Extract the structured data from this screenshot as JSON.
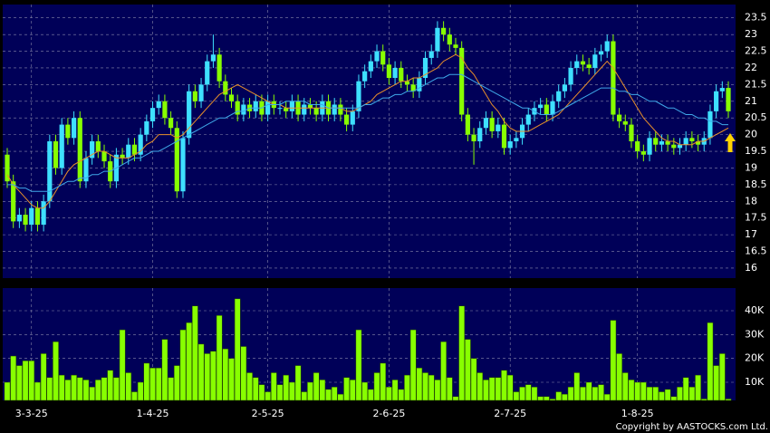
{
  "chart_data": {
    "type": "candlestick",
    "categories": [
      null,
      null,
      null,
      null,
      "3-3-25",
      null,
      null,
      null,
      null,
      null,
      null,
      null,
      null,
      null,
      null,
      null,
      null,
      null,
      null,
      null,
      null,
      null,
      null,
      null,
      "1-4-25",
      null,
      null,
      null,
      null,
      null,
      null,
      null,
      null,
      null,
      null,
      null,
      null,
      null,
      null,
      null,
      null,
      null,
      null,
      "2-5-25",
      null,
      null,
      null,
      null,
      null,
      null,
      null,
      null,
      null,
      null,
      null,
      null,
      null,
      null,
      null,
      null,
      null,
      null,
      null,
      "2-6-25",
      null,
      null,
      null,
      null,
      null,
      null,
      null,
      null,
      null,
      null,
      null,
      null,
      null,
      null,
      null,
      null,
      null,
      null,
      null,
      "2-7-25",
      null,
      null,
      null,
      null,
      null,
      null,
      null,
      null,
      null,
      null,
      null,
      null,
      null,
      null,
      null,
      null,
      null,
      null,
      null,
      null,
      "1-8-25",
      null,
      null,
      null,
      null,
      null,
      null,
      null,
      null,
      null,
      null,
      null,
      null,
      null,
      null,
      null
    ],
    "open": [
      19.4,
      18.6,
      17.4,
      17.6,
      17.3,
      17.8,
      17.3,
      18.0,
      19.8,
      19.0,
      20.3,
      19.9,
      20.5,
      18.6,
      19.3,
      19.8,
      19.5,
      19.2,
      18.6,
      19.4,
      19.3,
      19.7,
      19.4,
      20.0,
      20.4,
      20.8,
      21.0,
      20.5,
      20.2,
      18.3,
      19.9,
      21.3,
      21.0,
      21.5,
      22.2,
      22.4,
      21.6,
      21.2,
      21.0,
      20.6,
      20.9,
      20.7,
      21.0,
      20.6,
      21.0,
      20.8,
      20.8,
      20.7,
      21.0,
      20.6,
      20.9,
      20.8,
      20.6,
      21.0,
      20.6,
      20.9,
      20.6,
      20.3,
      20.7,
      21.6,
      21.9,
      22.2,
      22.5,
      22.1,
      21.7,
      22.0,
      21.6,
      21.5,
      21.3,
      21.7,
      22.3,
      22.5,
      23.2,
      23.0,
      22.7,
      22.6,
      20.6,
      20.0,
      19.8,
      20.2,
      20.5,
      20.1,
      20.3,
      19.6,
      19.8,
      19.9,
      20.3,
      20.6,
      20.8,
      20.9,
      20.6,
      21.0,
      21.3,
      21.5,
      22.0,
      22.2,
      22.1,
      22.0,
      22.4,
      22.5,
      22.8,
      20.6,
      20.4,
      20.3,
      19.8,
      19.5,
      19.4,
      19.9,
      19.7,
      19.8,
      19.7,
      19.6,
      19.7,
      19.9,
      19.8,
      19.7,
      19.9,
      20.7,
      21.3,
      21.4
    ],
    "high": [
      19.6,
      18.8,
      17.8,
      17.8,
      18.0,
      18.0,
      18.2,
      20.0,
      20.0,
      20.5,
      20.5,
      20.7,
      20.7,
      19.5,
      20.0,
      20.0,
      19.7,
      19.4,
      19.6,
      19.6,
      19.9,
      19.9,
      20.2,
      20.6,
      21.0,
      21.2,
      21.2,
      20.7,
      20.4,
      20.1,
      21.5,
      21.5,
      21.7,
      22.4,
      23.0,
      22.6,
      21.8,
      21.4,
      21.2,
      21.1,
      21.1,
      21.2,
      21.2,
      21.2,
      21.2,
      21.0,
      21.0,
      21.2,
      21.2,
      21.1,
      21.1,
      21.0,
      21.2,
      21.2,
      21.1,
      21.1,
      20.8,
      20.9,
      21.8,
      22.1,
      22.4,
      22.7,
      22.7,
      22.3,
      22.2,
      22.2,
      21.8,
      21.7,
      21.9,
      22.5,
      22.7,
      23.4,
      23.4,
      23.2,
      22.9,
      22.8,
      20.8,
      20.2,
      20.4,
      20.7,
      20.7,
      20.5,
      20.5,
      20.0,
      20.1,
      20.5,
      20.8,
      21.0,
      21.1,
      21.1,
      21.2,
      21.5,
      21.7,
      22.2,
      22.4,
      22.4,
      22.3,
      22.6,
      22.7,
      23.0,
      23.0,
      20.8,
      20.6,
      20.5,
      20.0,
      19.7,
      20.1,
      20.1,
      20.0,
      20.0,
      19.9,
      19.9,
      20.1,
      20.1,
      20.0,
      20.1,
      20.9,
      21.5,
      21.6,
      21.6
    ],
    "low": [
      18.4,
      17.2,
      17.2,
      17.1,
      17.1,
      17.1,
      17.1,
      17.8,
      18.8,
      18.8,
      19.7,
      19.7,
      18.4,
      18.4,
      19.1,
      19.3,
      19.0,
      18.4,
      18.4,
      19.1,
      19.1,
      19.2,
      19.2,
      19.8,
      20.2,
      20.6,
      20.3,
      20.0,
      18.1,
      18.1,
      19.7,
      20.8,
      20.8,
      21.3,
      22.0,
      21.4,
      21.0,
      20.8,
      20.4,
      20.4,
      20.5,
      20.5,
      20.4,
      20.4,
      20.6,
      20.6,
      20.5,
      20.5,
      20.4,
      20.4,
      20.6,
      20.4,
      20.4,
      20.4,
      20.4,
      20.4,
      20.1,
      20.1,
      20.5,
      21.4,
      21.7,
      22.0,
      21.9,
      21.5,
      21.5,
      21.4,
      21.3,
      21.1,
      21.1,
      21.5,
      22.1,
      22.3,
      22.8,
      22.5,
      22.4,
      20.4,
      19.8,
      19.1,
      19.6,
      20.0,
      19.9,
      19.9,
      19.4,
      19.4,
      19.6,
      19.7,
      20.1,
      20.4,
      20.6,
      20.4,
      20.4,
      20.8,
      21.1,
      21.3,
      21.8,
      21.9,
      21.8,
      21.8,
      22.2,
      22.3,
      20.4,
      20.2,
      20.1,
      19.6,
      19.3,
      19.2,
      19.2,
      19.5,
      19.5,
      19.5,
      19.4,
      19.4,
      19.5,
      19.6,
      19.5,
      19.5,
      19.7,
      20.5,
      21.1,
      20.5
    ],
    "close": [
      18.6,
      17.4,
      17.6,
      17.3,
      17.8,
      17.3,
      18.0,
      19.8,
      19.0,
      20.3,
      19.9,
      20.5,
      18.6,
      19.3,
      19.8,
      19.5,
      19.2,
      18.6,
      19.4,
      19.3,
      19.7,
      19.4,
      20.0,
      20.4,
      20.8,
      21.0,
      20.5,
      20.2,
      18.3,
      19.9,
      21.3,
      21.0,
      21.5,
      22.2,
      22.4,
      21.6,
      21.2,
      21.0,
      20.6,
      20.9,
      20.7,
      21.0,
      20.6,
      21.0,
      20.8,
      20.8,
      20.7,
      21.0,
      20.6,
      20.9,
      20.8,
      20.6,
      21.0,
      20.6,
      20.9,
      20.6,
      20.3,
      20.7,
      21.6,
      21.9,
      22.2,
      22.5,
      22.1,
      21.7,
      22.0,
      21.6,
      21.5,
      21.3,
      21.7,
      22.3,
      22.5,
      23.2,
      23.0,
      22.7,
      22.6,
      20.6,
      20.0,
      19.8,
      20.2,
      20.5,
      20.1,
      20.3,
      19.6,
      19.8,
      19.9,
      20.3,
      20.6,
      20.8,
      20.9,
      20.6,
      21.0,
      21.3,
      21.5,
      22.0,
      22.2,
      22.1,
      22.0,
      22.4,
      22.5,
      22.8,
      20.6,
      20.4,
      20.3,
      19.8,
      19.5,
      19.4,
      19.9,
      19.7,
      19.8,
      19.7,
      19.6,
      19.7,
      19.9,
      19.8,
      19.7,
      19.9,
      20.7,
      21.3,
      21.4,
      20.7
    ],
    "volume": [
      10000,
      21000,
      17000,
      19000,
      19000,
      10000,
      22000,
      12000,
      27000,
      13000,
      11000,
      13000,
      12000,
      11000,
      8000,
      11000,
      12000,
      15000,
      12000,
      32000,
      14000,
      6000,
      10000,
      18000,
      16000,
      16000,
      28000,
      12000,
      17000,
      32000,
      35000,
      42000,
      26000,
      22000,
      23000,
      38000,
      24000,
      20000,
      45000,
      25000,
      14000,
      12000,
      9000,
      6000,
      14000,
      9000,
      13000,
      10000,
      17000,
      6000,
      10000,
      14000,
      11000,
      7000,
      8000,
      5000,
      12000,
      11000,
      32000,
      10000,
      7000,
      14000,
      18000,
      8000,
      11000,
      7000,
      13000,
      32000,
      16000,
      14000,
      13000,
      11000,
      27000,
      12000,
      4000,
      42000,
      28000,
      20000,
      14000,
      11000,
      12000,
      12000,
      15000,
      13000,
      6000,
      8000,
      9000,
      8000,
      4000,
      4000,
      3000,
      6000,
      5000,
      8000,
      14000,
      8000,
      10000,
      8000,
      9000,
      5000,
      36000,
      22000,
      14000,
      11000,
      10000,
      10000,
      8000,
      8000,
      6000,
      7000,
      4000,
      8000,
      12000,
      8000,
      13000,
      3000,
      35000,
      17000,
      22000,
      3000
    ],
    "lines": [
      {
        "color": "#e8902a",
        "values": [
          18.8,
          18.5,
          18.3,
          18.1,
          17.9,
          17.8,
          17.8,
          18.0,
          18.3,
          18.6,
          18.9,
          19.1,
          19.2,
          19.3,
          19.4,
          19.5,
          19.5,
          19.4,
          19.3,
          19.3,
          19.3,
          19.4,
          19.5,
          19.7,
          19.8,
          20.0,
          20.0,
          20.0,
          19.9,
          20.0,
          20.2,
          20.4,
          20.6,
          20.8,
          21.0,
          21.2,
          21.3,
          21.4,
          21.5,
          21.4,
          21.3,
          21.2,
          21.1,
          21.0,
          20.9,
          20.9,
          20.8,
          20.8,
          20.8,
          20.8,
          20.8,
          20.8,
          20.8,
          20.8,
          20.8,
          20.8,
          20.7,
          20.7,
          20.8,
          20.9,
          21.0,
          21.2,
          21.3,
          21.4,
          21.5,
          21.6,
          21.6,
          21.7,
          21.7,
          21.8,
          21.9,
          22.0,
          22.2,
          22.3,
          22.4,
          22.3,
          22.0,
          21.8,
          21.5,
          21.2,
          20.9,
          20.7,
          20.4,
          20.2,
          20.1,
          20.1,
          20.1,
          20.2,
          20.3,
          20.4,
          20.5,
          20.6,
          20.8,
          21.0,
          21.2,
          21.4,
          21.6,
          21.8,
          22.0,
          22.2,
          22.0,
          21.7,
          21.4,
          21.1,
          20.8,
          20.5,
          20.3,
          20.1,
          19.9,
          19.8,
          19.8,
          19.7,
          19.7,
          19.7,
          19.8,
          19.8,
          19.9,
          20.0,
          20.1,
          20.2
        ]
      },
      {
        "color": "#3fa8e8",
        "values": [
          18.5,
          18.5,
          18.4,
          18.4,
          18.3,
          18.3,
          18.3,
          18.3,
          18.4,
          18.5,
          18.6,
          18.6,
          18.7,
          18.7,
          18.8,
          18.8,
          18.9,
          18.9,
          19.0,
          19.1,
          19.2,
          19.3,
          19.3,
          19.4,
          19.5,
          19.5,
          19.6,
          19.7,
          19.8,
          19.9,
          20.0,
          20.1,
          20.2,
          20.3,
          20.4,
          20.5,
          20.5,
          20.6,
          20.7,
          20.7,
          20.8,
          20.8,
          20.8,
          20.9,
          20.9,
          20.9,
          21.0,
          21.0,
          21.0,
          21.0,
          20.9,
          20.9,
          20.9,
          20.8,
          20.8,
          20.8,
          20.8,
          20.8,
          20.8,
          20.9,
          20.9,
          21.0,
          21.1,
          21.1,
          21.2,
          21.2,
          21.3,
          21.3,
          21.4,
          21.5,
          21.6,
          21.7,
          21.7,
          21.8,
          21.8,
          21.8,
          21.7,
          21.6,
          21.5,
          21.4,
          21.3,
          21.2,
          21.1,
          21.0,
          20.9,
          20.8,
          20.8,
          20.7,
          20.6,
          20.6,
          20.6,
          20.7,
          20.8,
          20.9,
          21.0,
          21.1,
          21.2,
          21.3,
          21.4,
          21.4,
          21.4,
          21.3,
          21.3,
          21.2,
          21.2,
          21.1,
          21.0,
          21.0,
          20.9,
          20.8,
          20.8,
          20.7,
          20.6,
          20.6,
          20.5,
          20.5,
          20.4,
          20.4,
          20.3,
          20.3
        ]
      }
    ],
    "up_color": "#3ee0ff",
    "down_color": "#88ff00",
    "volume_color": "#88ff00",
    "ylim": [
      15.7,
      23.9
    ],
    "yticks": [
      16,
      16.5,
      17,
      17.5,
      18,
      18.5,
      19,
      19.5,
      20,
      20.5,
      21,
      21.5,
      22,
      22.5,
      23,
      23.5
    ],
    "volume_ylim": [
      2400,
      49500
    ],
    "volume_yticks": [
      {
        "value": 10000,
        "label": "10K"
      },
      {
        "value": 20000,
        "label": "20K"
      },
      {
        "value": 30000,
        "label": "30K"
      },
      {
        "value": 40000,
        "label": "40K"
      }
    ],
    "grid": true,
    "copyright": "Copyright by AASTOCKS.com Ltd."
  }
}
